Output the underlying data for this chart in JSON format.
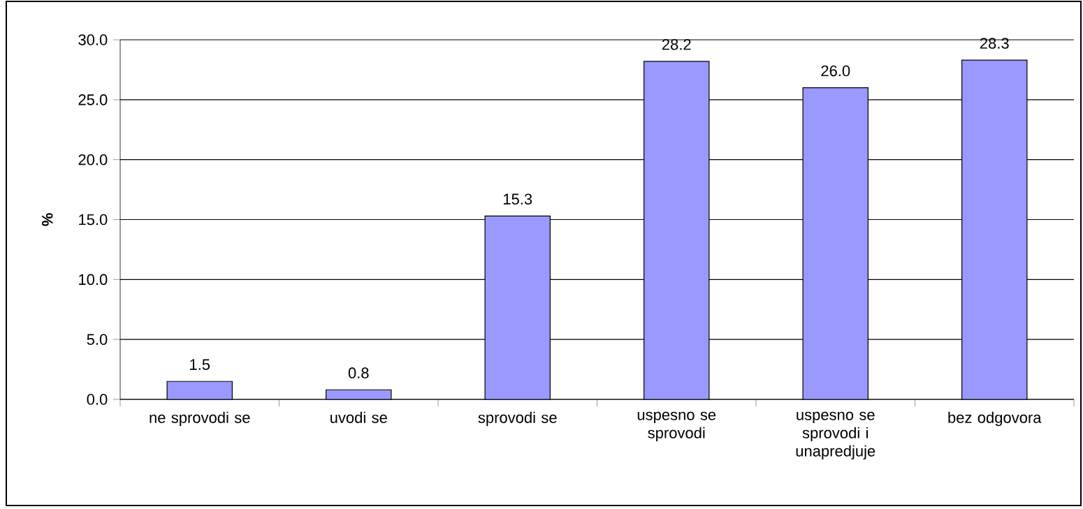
{
  "chart_data": {
    "type": "bar",
    "ylabel": "%",
    "categories": [
      "ne sprovodi se",
      "uvodi se",
      "sprovodi se",
      "uspesno se sprovodi",
      "uspesno se sprovodi i unapredjuje",
      "bez odgovora"
    ],
    "values": [
      1.5,
      0.8,
      15.3,
      28.2,
      26.0,
      28.3
    ],
    "value_labels": [
      "1.5",
      "0.8",
      "15.3",
      "28.2",
      "26.0",
      "28.3"
    ],
    "color": "#9999ff",
    "ylim": [
      0,
      30
    ],
    "yticks": [
      {
        "value": 0,
        "label": "0.0"
      },
      {
        "value": 5,
        "label": "5.0"
      },
      {
        "value": 10,
        "label": "10.0"
      },
      {
        "value": 15,
        "label": "15.0"
      },
      {
        "value": 20,
        "label": "20.0"
      },
      {
        "value": 25,
        "label": "25.0"
      },
      {
        "value": 30,
        "label": "30.0"
      }
    ],
    "grid": "y"
  }
}
